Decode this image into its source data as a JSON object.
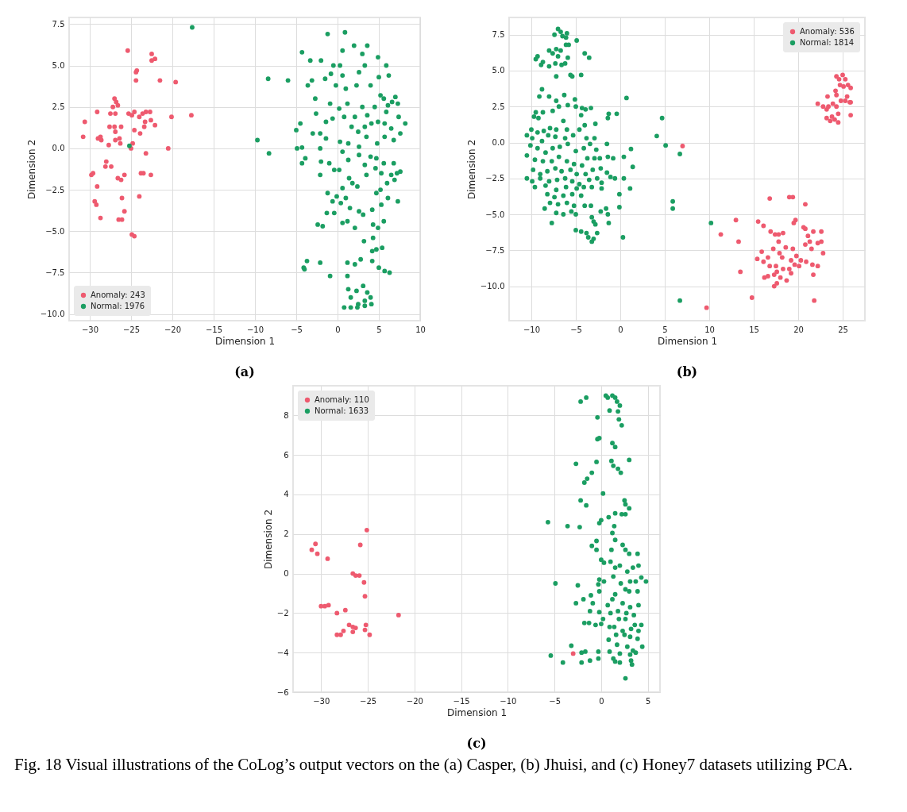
{
  "chart_data": [
    {
      "type": "scatter",
      "title": "(a)",
      "xlabel": "Dimension 1",
      "ylabel": "Dimension 2",
      "xlim": [
        -32.5,
        10
      ],
      "ylim": [
        -10.4,
        7.9
      ],
      "xticks": [
        -30,
        -25,
        -20,
        -15,
        -10,
        -5,
        0,
        5,
        10
      ],
      "yticks": [
        {
          "value": -10,
          "label": "−10.0"
        },
        -7.5,
        {
          "value": -5,
          "label": "−5.0"
        },
        -2.5,
        {
          "value": 0,
          "label": "0.0"
        },
        2.5,
        {
          "value": 5,
          "label": "5.0"
        },
        7.5
      ],
      "grid": true,
      "legend": "bottom left",
      "marker": "circle",
      "series": [
        {
          "name": "Anomaly: 243",
          "color": "#ee5a6f",
          "x": [
            -30.8,
            -30.6,
            -29.8,
            -29.6,
            -29.1,
            -29.0,
            -28.7,
            -28.6,
            -29.1,
            -29.4,
            -29.2,
            -28.7,
            -27.7,
            -27.6,
            -27.5,
            -27.2,
            -27.0,
            -26.8,
            -26.6,
            -26.9,
            -27.0,
            -26.9,
            -26.9,
            -26.4,
            -26.3,
            -26.2,
            -28.0,
            -28.1,
            -27.4,
            -26.6,
            -26.2,
            -25.8,
            -26.1,
            -25.8,
            -26.5,
            -26.1,
            -25.4,
            -25.3,
            -24.9,
            -24.8,
            -25.0,
            -24.6,
            -24.6,
            -24.3,
            -24.4,
            -24.4,
            -24.0,
            -23.9,
            -23.6,
            -23.4,
            -23.3,
            -23.2,
            -22.7,
            -23.8,
            -23.5,
            -24.0,
            -23.2,
            -22.6,
            -22.1,
            -22.6,
            -22.5,
            -22.5,
            -22.1,
            -21.5,
            -20.5,
            -20.1,
            -19.6,
            -17.7,
            -24.9,
            -24.6
          ],
          "values": [
            0.7,
            1.6,
            -1.6,
            -1.5,
            2.2,
            0.6,
            0.7,
            0.5,
            -2.3,
            -3.2,
            -3.4,
            -4.2,
            0.2,
            1.3,
            2.1,
            2.5,
            3.0,
            2.8,
            2.6,
            2.1,
            1.3,
            1.0,
            0.5,
            0.6,
            0.3,
            1.3,
            -0.8,
            -1.1,
            -1.1,
            -1.8,
            -1.9,
            -1.6,
            -3.0,
            -3.8,
            -4.3,
            -4.3,
            5.9,
            2.1,
            2.0,
            0.3,
            0.0,
            1.1,
            2.2,
            4.7,
            4.6,
            4.1,
            1.9,
            0.9,
            2.1,
            1.3,
            1.6,
            2.2,
            2.2,
            -1.5,
            -1.5,
            -2.9,
            -0.3,
            1.7,
            1.4,
            -1.6,
            5.7,
            5.3,
            5.4,
            4.1,
            0.0,
            1.9,
            4.0,
            2.0,
            -5.2,
            -5.3
          ]
        },
        {
          "name": "Normal: 1976",
          "color": "#1b9e62",
          "x": [
            -17.6,
            -25.2,
            -9.7,
            -8.3,
            -8.4,
            -6.0,
            -4.3,
            -3.3,
            -3.6,
            -3.1,
            -2.7,
            -2.6,
            -4.5,
            -5.0,
            -4.9,
            -4.3,
            -3.9,
            -4.3,
            -3.0,
            -2.1,
            -1.4,
            -2.1,
            -2.0,
            -2.1,
            -1.0,
            -1.4,
            -2.0,
            -1.2,
            -0.5,
            -0.8,
            0.3,
            -1.5,
            -0.2,
            0.6,
            1.0,
            -0.9,
            -0.6,
            0.2,
            0.8,
            1.2,
            0.9,
            0.6,
            2.0,
            3.6,
            3.0,
            3.3,
            2.6,
            2.3,
            4.9,
            5.9,
            6.2,
            5.0,
            4.0,
            5.2,
            5.6,
            6.1,
            6.6,
            7.3,
            7.0,
            5.9,
            4.5,
            3.6,
            3.0,
            2.1,
            1.7,
            2.5,
            3.3,
            4.1,
            4.9,
            5.7,
            6.5,
            7.4,
            8.2,
            7.6,
            6.8,
            5.7,
            4.8,
            3.5,
            2.6,
            1.3,
            0.3,
            0.6,
            1.3,
            2.6,
            3.3,
            4.0,
            4.7,
            5.6,
            6.8,
            7.6,
            6.5,
            5.3,
            4.6,
            6.0,
            6.9,
            7.2,
            5.2,
            3.5,
            0.2,
            -0.4,
            1.4,
            0.6,
            1.8,
            2.4,
            -0.1,
            -0.6,
            -1.2,
            0.4,
            1.0,
            1.5,
            2.6,
            3.1,
            4.2,
            4.7,
            5.3,
            6.1,
            7.3,
            -1.3,
            -0.4,
            0.6,
            1.2,
            2.1,
            4.3,
            4.9,
            5.6,
            -2.4,
            -1.8,
            3.2,
            4.3,
            4.7,
            5.4,
            4.2,
            -4.1,
            -3.7,
            -2.1,
            -0.9,
            1.2,
            1.2,
            2.1,
            2.8,
            3.1,
            4.2,
            5.0,
            5.7,
            6.3,
            2.3,
            1.3,
            1.6,
            3.3,
            3.6,
            4.0,
            2.5,
            0.8,
            1.6,
            2.4,
            3.3,
            4.1,
            -4.0
          ],
          "values": [
            7.3,
            0.15,
            0.5,
            -0.3,
            4.2,
            4.1,
            5.8,
            5.3,
            3.8,
            4.1,
            3.0,
            2.1,
            1.5,
            1.1,
            0.0,
            0.05,
            -0.6,
            -0.9,
            0.9,
            0.9,
            0.6,
            0.0,
            -0.8,
            -1.6,
            -0.9,
            1.6,
            5.3,
            6.9,
            5.0,
            4.5,
            5.0,
            4.2,
            3.8,
            4.4,
            3.6,
            2.7,
            1.8,
            2.4,
            1.9,
            2.7,
            7.0,
            5.9,
            6.2,
            6.2,
            5.7,
            5.0,
            4.6,
            3.8,
            5.5,
            5.0,
            4.4,
            4.3,
            3.8,
            3.2,
            3.0,
            2.6,
            2.8,
            2.7,
            3.1,
            2.2,
            2.5,
            2.0,
            2.5,
            1.9,
            1.3,
            1.0,
            1.3,
            1.5,
            1.6,
            1.5,
            1.2,
            1.9,
            1.5,
            0.9,
            0.5,
            0.7,
            0.3,
            0.7,
            0.1,
            0.3,
            0.4,
            -0.2,
            -0.7,
            -0.4,
            -1.0,
            -0.5,
            -0.6,
            -0.9,
            -0.9,
            -1.4,
            -1.6,
            -1.5,
            -1.2,
            -2.1,
            -1.9,
            -1.5,
            -2.5,
            -1.6,
            -1.3,
            -1.3,
            -1.8,
            -2.4,
            -2.1,
            -2.3,
            -2.9,
            -3.2,
            -2.7,
            -3.3,
            -3.0,
            -3.6,
            -3.8,
            -4.0,
            -3.7,
            -2.7,
            -3.4,
            -3.0,
            -3.2,
            -3.9,
            -3.9,
            -4.5,
            -4.4,
            -4.8,
            -4.6,
            -4.8,
            -4.4,
            -4.6,
            -4.7,
            -5.6,
            -5.4,
            -6.1,
            -6.0,
            -6.2,
            -7.2,
            -6.8,
            -6.9,
            -7.7,
            -7.7,
            -6.9,
            -7.0,
            -6.7,
            -8.3,
            -6.8,
            -7.2,
            -7.4,
            -7.5,
            -8.6,
            -8.5,
            -9.0,
            -9.2,
            -8.7,
            -9.0,
            -9.4,
            -9.6,
            -9.6,
            -9.6,
            -9.5,
            -9.4,
            -7.3
          ]
        }
      ]
    },
    {
      "type": "scatter",
      "title": "(b)",
      "xlabel": "Dimension 1",
      "ylabel": "Dimension 2",
      "xlim": [
        -12.5,
        27.5
      ],
      "ylim": [
        -12.4,
        8.7
      ],
      "xticks": [
        -10,
        -5,
        0,
        5,
        10,
        15,
        20,
        25
      ],
      "yticks": [
        {
          "value": -10,
          "label": "−10.0"
        },
        -7.5,
        {
          "value": -5,
          "label": "−5.0"
        },
        -2.5,
        {
          "value": 0,
          "label": "0.0"
        },
        2.5,
        {
          "value": 5,
          "label": "5.0"
        },
        7.5
      ],
      "grid": true,
      "legend": "top right",
      "marker": "circle",
      "series": [
        {
          "name": "Anomaly: 536",
          "color": "#ee5a6f",
          "x": [
            24.3,
            24.6,
            25.0,
            25.3,
            25.6,
            25.9,
            25.1,
            24.7,
            24.2,
            25.5,
            25.9,
            25.3,
            24.8,
            24.3,
            24.3,
            23.9,
            23.3,
            23.4,
            22.8,
            22.2,
            23.2,
            24.5,
            23.2,
            23.6,
            24.1,
            24.5,
            25.9,
            23.8,
            25.8,
            16.8,
            19.0,
            19.4,
            20.8,
            13.0,
            15.5,
            16.1,
            19.5,
            19.7,
            20.6,
            20.8,
            21.7,
            22.6,
            11.3,
            13.3,
            16.9,
            17.4,
            17.8,
            18.3,
            17.8,
            21.1,
            21.3,
            22.2,
            22.6,
            17.2,
            18.6,
            19.4,
            20.8,
            21.5,
            22.8,
            15.9,
            15.4,
            16.1,
            17.9,
            18.2,
            16.6,
            19.2,
            19.8,
            20.3,
            20.9,
            21.6,
            22.2,
            16.8,
            17.5,
            18.3,
            19.0,
            19.6,
            20.1,
            17.3,
            17.6,
            18.0,
            19.2,
            16.2,
            16.6,
            21.7,
            13.5,
            17.3,
            18.7,
            17.6,
            14.8,
            21.8,
            9.7,
            7.0
          ],
          "values": [
            4.6,
            4.4,
            4.7,
            4.4,
            4.0,
            3.8,
            3.9,
            4.0,
            3.6,
            3.2,
            2.8,
            2.9,
            2.9,
            3.3,
            2.5,
            2.7,
            3.2,
            2.5,
            2.5,
            2.7,
            2.3,
            2.0,
            1.7,
            1.5,
            1.6,
            1.4,
            1.9,
            1.8,
            2.8,
            -3.9,
            -3.8,
            -3.8,
            -4.3,
            -5.4,
            -5.5,
            -5.8,
            -5.6,
            -5.4,
            -5.9,
            -6.0,
            -6.2,
            -6.2,
            -6.4,
            -6.9,
            -6.2,
            -6.4,
            -6.4,
            -6.3,
            -6.9,
            -6.5,
            -6.9,
            -7.0,
            -6.9,
            -7.4,
            -7.3,
            -7.4,
            -7.1,
            -7.4,
            -7.7,
            -7.6,
            -8.1,
            -8.3,
            -7.7,
            -8.0,
            -8.0,
            -8.2,
            -7.9,
            -8.2,
            -8.3,
            -8.5,
            -8.6,
            -8.6,
            -8.6,
            -8.8,
            -8.8,
            -8.5,
            -8.6,
            -9.2,
            -9.0,
            -9.4,
            -9.1,
            -9.4,
            -9.3,
            -9.2,
            -9.0,
            -10.0,
            -9.6,
            -9.8,
            -10.8,
            -11.0,
            -11.5,
            -0.25
          ]
        },
        {
          "name": "Normal: 1814",
          "color": "#1b9e62",
          "x": [
            -7.0,
            -6.7,
            -7.4,
            -6.5,
            -6.0,
            -6.1,
            -4.9,
            -6.1,
            -5.8,
            -7.2,
            -6.7,
            -7.0,
            -7.6,
            -8.0,
            -9.3,
            -9.5,
            -8.7,
            -8.9,
            -8.0,
            -7.3,
            -6.6,
            -6.2,
            -5.9,
            -4.0,
            -3.5,
            -7.2,
            -5.6,
            -5.4,
            -4.4,
            -8.8,
            -9.1,
            -8.0,
            -7.2,
            -6.3,
            -5.1,
            -5.9,
            -6.9,
            -7.6,
            -8.7,
            -9.5,
            -9.7,
            -9.2,
            -6.4,
            -5.0,
            -4.3,
            -3.9,
            -3.3,
            -4.4,
            -2.8,
            -4.0,
            -4.6,
            -6.0,
            -7.2,
            -7.9,
            -8.6,
            -9.3,
            -10.0,
            -10.5,
            -9.9,
            -8.8,
            -8.1,
            -7.3,
            -6.2,
            -5.3,
            -3.8,
            -2.9,
            -1.4,
            -1.3,
            -0.4,
            0.7,
            -10.1,
            -9.3,
            -8.4,
            -7.6,
            -6.8,
            -5.9,
            -5.0,
            -4.1,
            -3.4,
            -2.7,
            -1.5,
            1.2,
            -10.5,
            -9.6,
            -8.7,
            -7.7,
            -6.9,
            -6.0,
            -5.2,
            -4.3,
            -3.7,
            -2.9,
            -2.3,
            -1.4,
            -0.8,
            0.4,
            -9.8,
            -9.0,
            -8.2,
            -7.3,
            -6.6,
            -5.6,
            -4.9,
            -3.9,
            -3.1,
            -2.2,
            -1.5,
            1.4,
            -10.5,
            -9.9,
            -9.0,
            -8.0,
            -7.1,
            -6.2,
            -5.4,
            -4.6,
            -3.5,
            -2.6,
            -1.1,
            -0.6,
            0.4,
            -9.6,
            -8.4,
            -7.2,
            -6.1,
            -4.9,
            -4.1,
            -3.2,
            -2.1,
            1.1,
            -8.2,
            -7.4,
            -6.4,
            -5.4,
            -4.4,
            -2.1,
            -0.1,
            -7.9,
            -7.0,
            -6.0,
            -5.2,
            -4.0,
            -3.3,
            -8.5,
            -1.6,
            -0.1,
            -7.2,
            -6.4,
            -5.5,
            -5.0,
            -3.2,
            -2.2,
            -1.4,
            -7.7,
            -3.0,
            -2.8,
            -1.3,
            -5.0,
            -4.4,
            -3.8,
            -2.6,
            -3.6,
            -3.2,
            0.3,
            -3.0,
            4.1,
            4.7,
            5.1,
            6.7,
            5.9,
            5.9,
            10.2,
            6.7
          ],
          "values": [
            7.9,
            7.7,
            7.5,
            7.4,
            7.6,
            7.3,
            7.1,
            6.8,
            6.8,
            6.5,
            6.4,
            6.0,
            6.2,
            6.4,
            6.0,
            5.8,
            5.6,
            5.4,
            5.3,
            5.5,
            5.4,
            5.5,
            5.9,
            6.2,
            5.9,
            4.6,
            4.7,
            4.6,
            4.7,
            3.7,
            3.2,
            3.2,
            2.9,
            3.3,
            3.0,
            2.6,
            2.5,
            2.2,
            2.1,
            2.1,
            1.8,
            1.7,
            1.5,
            2.5,
            2.4,
            2.3,
            2.4,
            1.9,
            1.3,
            1.2,
            0.9,
            0.9,
            0.9,
            1.0,
            0.8,
            0.7,
            0.9,
            0.5,
            0.3,
            0.1,
            0.5,
            0.4,
            0.3,
            0.5,
            0.3,
            0.3,
            1.7,
            2.0,
            2.0,
            3.1,
            -0.2,
            -0.4,
            -0.7,
            -0.4,
            -0.3,
            -0.1,
            -0.6,
            -0.4,
            -0.1,
            -0.5,
            -0.1,
            -0.45,
            -0.9,
            -1.2,
            -1.3,
            -1.3,
            -1.0,
            -1.3,
            -1.5,
            -1.6,
            -1.1,
            -1.1,
            -1.1,
            -1.0,
            -1.1,
            -1.0,
            -1.9,
            -2.2,
            -2.0,
            -1.8,
            -2.0,
            -1.9,
            -2.2,
            -2.2,
            -1.9,
            -1.8,
            -2.1,
            -1.7,
            -2.5,
            -2.7,
            -2.5,
            -2.7,
            -2.6,
            -2.5,
            -2.7,
            -2.9,
            -2.6,
            -2.5,
            -2.4,
            -2.5,
            -2.5,
            -3.1,
            -3.0,
            -3.3,
            -3.1,
            -3.2,
            -3.1,
            -3.1,
            -2.8,
            -3.2,
            -3.6,
            -3.8,
            -3.7,
            -3.6,
            -3.7,
            -3.2,
            -3.6,
            -4.2,
            -4.3,
            -4.2,
            -4.4,
            -4.4,
            -4.4,
            -4.6,
            -4.6,
            -4.5,
            -4.9,
            -5.0,
            -4.8,
            -5.0,
            -5.2,
            -4.8,
            -5.0,
            -5.6,
            -5.5,
            -5.7,
            -5.6,
            -6.1,
            -6.2,
            -6.3,
            -6.3,
            -6.6,
            -6.9,
            -6.6,
            -6.7,
            0.45,
            1.7,
            -0.2,
            -0.8,
            -4.1,
            -4.6,
            -5.6,
            -11.0
          ]
        }
      ]
    },
    {
      "type": "scatter",
      "title": "(c)",
      "xlabel": "Dimension 1",
      "ylabel": "Dimension 2",
      "xlim": [
        -33,
        6.3
      ],
      "ylim": [
        -6,
        9.5
      ],
      "xticks": [
        -30,
        -25,
        -20,
        -15,
        -10,
        -5,
        0,
        5
      ],
      "yticks": [
        -6,
        -4,
        -2,
        0,
        2,
        4,
        6,
        8
      ],
      "grid": true,
      "legend": "top left",
      "marker": "circle",
      "annotations": [
        "Fig. 18  Visual illustrations of the CoLog’s output vectors on the (a) Casper, (b) Jhuisi, and (c) Honey7 datasets utilizing PCA."
      ],
      "series": [
        {
          "name": "Anomaly: 110",
          "color": "#ee5a6f",
          "x": [
            -31.0,
            -30.6,
            -30.4,
            -29.3,
            -25.1,
            -25.8,
            -26.6,
            -26.3,
            -25.9,
            -25.4,
            -25.3,
            -30.0,
            -29.6,
            -29.2,
            -28.3,
            -27.4,
            -21.7,
            -27.0,
            -26.6,
            -26.3,
            -25.2,
            -25.3,
            -26.6,
            -27.6,
            -28.3,
            -27.9,
            -24.8,
            -3.0
          ],
          "values": [
            1.2,
            1.5,
            1.0,
            0.75,
            2.2,
            1.45,
            0.0,
            -0.1,
            -0.1,
            -0.45,
            -1.15,
            -1.65,
            -1.65,
            -1.6,
            -2.0,
            -1.85,
            -2.1,
            -2.6,
            -2.7,
            -2.75,
            -2.6,
            -2.85,
            -2.95,
            -2.9,
            -3.1,
            -3.1,
            -3.1,
            -4.05
          ]
        },
        {
          "name": "Normal: 1633",
          "color": "#1b9e62",
          "x": [
            0.5,
            0.7,
            1.2,
            1.5,
            1.7,
            2.0,
            1.8,
            0.9,
            -2.2,
            -1.6,
            -0.4,
            1.9,
            2.2,
            -0.4,
            -0.2,
            1.2,
            1.5,
            -2.7,
            -0.5,
            1.1,
            1.3,
            1.8,
            2.1,
            3.0,
            -1.0,
            -1.5,
            -1.8,
            0.2,
            -2.2,
            -1.6,
            2.5,
            2.6,
            3.0,
            1.5,
            2.2,
            2.6,
            -5.7,
            -3.6,
            -2.3,
            -0.2,
            0.0,
            0.8,
            1.4,
            1.2,
            1.5,
            2.3,
            -0.5,
            -1.0,
            -0.5,
            1.1,
            2.6,
            3.0,
            3.9,
            0.0,
            0.3,
            1.0,
            1.5,
            2.0,
            2.8,
            3.4,
            4.0,
            -4.9,
            -0.2,
            0.3,
            1.3,
            2.1,
            2.6,
            3.1,
            3.7,
            4.3,
            4.8,
            -2.5,
            -0.3,
            1.5,
            3.9,
            3.0,
            -1.1,
            -0.2,
            1.2,
            -2.7,
            -1.9,
            -0.9,
            0.7,
            2.3,
            3.1,
            4.0,
            -1.2,
            -0.2,
            1.0,
            1.8,
            2.7,
            3.5,
            0.2,
            1.9,
            2.6,
            3.6,
            4.3,
            -1.8,
            -1.3,
            0.0,
            0.9,
            1.4,
            2.3,
            3.2,
            4.0,
            -0.6,
            1.6,
            2.5,
            3.1,
            3.9,
            0.8,
            1.7,
            2.8,
            3.4,
            4.4,
            -3.2,
            -2.1,
            -1.7,
            -0.3,
            0.9,
            1.3,
            2.0,
            3.1,
            3.7,
            -5.4,
            -4.1,
            -2.1,
            -1.2,
            -0.3,
            1.5,
            2.0,
            3.3,
            3.2,
            2.6
          ],
          "values": [
            9.0,
            8.9,
            9.0,
            8.9,
            8.7,
            8.5,
            8.2,
            8.25,
            8.7,
            8.9,
            7.9,
            7.8,
            7.5,
            6.8,
            6.85,
            6.6,
            6.4,
            5.55,
            5.65,
            5.7,
            5.45,
            5.3,
            5.1,
            5.75,
            5.1,
            4.8,
            4.6,
            4.05,
            3.7,
            3.45,
            3.7,
            3.5,
            3.3,
            3.05,
            3.0,
            3.0,
            2.6,
            2.4,
            2.35,
            2.55,
            2.7,
            2.85,
            2.4,
            2.05,
            1.7,
            1.45,
            1.65,
            1.4,
            1.2,
            1.2,
            1.2,
            1.0,
            1.0,
            0.7,
            0.55,
            0.6,
            0.3,
            0.4,
            0.1,
            0.3,
            0.4,
            -0.5,
            -0.3,
            -0.4,
            -0.15,
            -0.5,
            -0.8,
            -0.4,
            -0.4,
            -0.2,
            -0.4,
            -0.6,
            -0.55,
            -1.05,
            -0.9,
            -0.9,
            -1.1,
            -0.9,
            -1.3,
            -1.5,
            -1.3,
            -1.5,
            -1.6,
            -1.5,
            -1.7,
            -1.6,
            -1.9,
            -1.95,
            -2.0,
            -1.9,
            -2.0,
            -2.1,
            -2.3,
            -2.3,
            -2.3,
            -2.6,
            -2.6,
            -2.5,
            -2.5,
            -2.55,
            -2.7,
            -2.7,
            -2.9,
            -2.8,
            -2.9,
            -2.6,
            -3.1,
            -3.1,
            -3.2,
            -3.3,
            -3.35,
            -3.6,
            -3.7,
            -3.9,
            -3.7,
            -3.65,
            -4.0,
            -3.95,
            -3.95,
            -3.95,
            -4.3,
            -4.05,
            -4.1,
            -4.0,
            -4.15,
            -4.5,
            -4.5,
            -4.4,
            -4.3,
            -4.45,
            -4.5,
            -4.6,
            -4.4,
            -5.3
          ]
        }
      ]
    }
  ]
}
